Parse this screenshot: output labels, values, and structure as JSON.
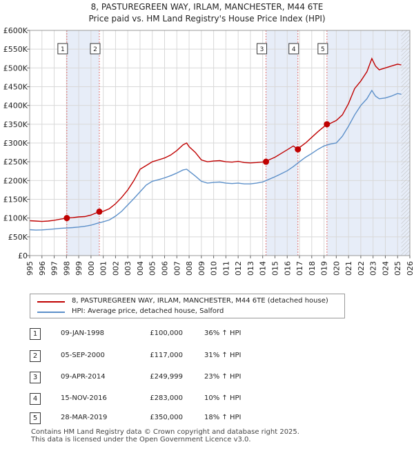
{
  "chart_data": {
    "type": "line",
    "title": "8, PASTUREGREEN WAY, IRLAM, MANCHESTER, M44 6TE",
    "subtitle": "Price paid vs. HM Land Registry's House Price Index (HPI)",
    "xlim": [
      1995,
      2026
    ],
    "ylim": [
      0,
      600000
    ],
    "x_ticks": [
      "1995",
      "1996",
      "1997",
      "1998",
      "1999",
      "2000",
      "2001",
      "2002",
      "2003",
      "2004",
      "2005",
      "2006",
      "2007",
      "2008",
      "2009",
      "2010",
      "2011",
      "2012",
      "2013",
      "2014",
      "2015",
      "2016",
      "2017",
      "2018",
      "2019",
      "2020",
      "2021",
      "2022",
      "2023",
      "2024",
      "2025",
      "2026"
    ],
    "y_ticks": [
      "£0",
      "£50K",
      "£100K",
      "£150K",
      "£200K",
      "£250K",
      "£300K",
      "£350K",
      "£400K",
      "£450K",
      "£500K",
      "£550K",
      "£600K"
    ],
    "y_tick_values": [
      0,
      50000,
      100000,
      150000,
      200000,
      250000,
      300000,
      350000,
      400000,
      450000,
      500000,
      550000,
      600000
    ],
    "grid": true,
    "data_end": 2025.3,
    "series": [
      {
        "name": "8, PASTUREGREEN WAY, IRLAM, MANCHESTER, M44 6TE (detached house)",
        "color": "#c00000",
        "points": [
          [
            1995.0,
            93000
          ],
          [
            1995.5,
            92000
          ],
          [
            1996.0,
            91000
          ],
          [
            1996.5,
            92000
          ],
          [
            1997.0,
            94000
          ],
          [
            1997.5,
            97000
          ],
          [
            1998.03,
            100000
          ],
          [
            1998.5,
            101000
          ],
          [
            1999.0,
            103000
          ],
          [
            1999.5,
            104000
          ],
          [
            2000.0,
            108000
          ],
          [
            2000.68,
            117000
          ],
          [
            2001.0,
            118000
          ],
          [
            2001.5,
            125000
          ],
          [
            2002.0,
            138000
          ],
          [
            2002.5,
            155000
          ],
          [
            2003.0,
            175000
          ],
          [
            2003.5,
            200000
          ],
          [
            2004.0,
            230000
          ],
          [
            2004.5,
            240000
          ],
          [
            2005.0,
            250000
          ],
          [
            2005.5,
            255000
          ],
          [
            2006.0,
            260000
          ],
          [
            2006.5,
            268000
          ],
          [
            2007.0,
            280000
          ],
          [
            2007.5,
            295000
          ],
          [
            2007.8,
            300000
          ],
          [
            2008.0,
            290000
          ],
          [
            2008.5,
            275000
          ],
          [
            2009.0,
            255000
          ],
          [
            2009.5,
            250000
          ],
          [
            2010.0,
            252000
          ],
          [
            2010.5,
            253000
          ],
          [
            2011.0,
            250000
          ],
          [
            2011.5,
            249000
          ],
          [
            2012.0,
            251000
          ],
          [
            2012.5,
            248000
          ],
          [
            2013.0,
            247000
          ],
          [
            2013.5,
            248000
          ],
          [
            2014.27,
            249999
          ],
          [
            2014.5,
            255000
          ],
          [
            2015.0,
            262000
          ],
          [
            2015.5,
            272000
          ],
          [
            2016.0,
            282000
          ],
          [
            2016.5,
            292000
          ],
          [
            2016.87,
            283000
          ],
          [
            2017.0,
            288000
          ],
          [
            2017.5,
            300000
          ],
          [
            2018.0,
            315000
          ],
          [
            2018.5,
            330000
          ],
          [
            2019.24,
            350000
          ],
          [
            2019.5,
            352000
          ],
          [
            2020.0,
            360000
          ],
          [
            2020.5,
            375000
          ],
          [
            2021.0,
            405000
          ],
          [
            2021.5,
            445000
          ],
          [
            2022.0,
            465000
          ],
          [
            2022.5,
            490000
          ],
          [
            2022.9,
            525000
          ],
          [
            2023.2,
            505000
          ],
          [
            2023.5,
            495000
          ],
          [
            2024.0,
            500000
          ],
          [
            2024.5,
            505000
          ],
          [
            2025.0,
            510000
          ],
          [
            2025.3,
            508000
          ]
        ]
      },
      {
        "name": "HPI: Average price, detached house, Salford",
        "color": "#5b8fc9",
        "points": [
          [
            1995.0,
            69000
          ],
          [
            1995.5,
            68000
          ],
          [
            1996.0,
            68500
          ],
          [
            1996.5,
            69500
          ],
          [
            1997.0,
            71000
          ],
          [
            1997.5,
            72500
          ],
          [
            1998.0,
            73500
          ],
          [
            1998.5,
            74500
          ],
          [
            1999.0,
            76000
          ],
          [
            1999.5,
            78000
          ],
          [
            2000.0,
            81000
          ],
          [
            2000.5,
            86000
          ],
          [
            2001.0,
            90000
          ],
          [
            2001.5,
            95000
          ],
          [
            2002.0,
            105000
          ],
          [
            2002.5,
            118000
          ],
          [
            2003.0,
            135000
          ],
          [
            2003.5,
            152000
          ],
          [
            2004.0,
            170000
          ],
          [
            2004.5,
            188000
          ],
          [
            2005.0,
            198000
          ],
          [
            2005.5,
            202000
          ],
          [
            2006.0,
            207000
          ],
          [
            2006.5,
            213000
          ],
          [
            2007.0,
            220000
          ],
          [
            2007.5,
            228000
          ],
          [
            2007.8,
            230000
          ],
          [
            2008.0,
            225000
          ],
          [
            2008.5,
            212000
          ],
          [
            2009.0,
            198000
          ],
          [
            2009.5,
            193000
          ],
          [
            2010.0,
            195000
          ],
          [
            2010.5,
            196000
          ],
          [
            2011.0,
            193000
          ],
          [
            2011.5,
            192000
          ],
          [
            2012.0,
            193000
          ],
          [
            2012.5,
            191000
          ],
          [
            2013.0,
            191000
          ],
          [
            2013.5,
            193000
          ],
          [
            2014.0,
            196000
          ],
          [
            2014.5,
            203000
          ],
          [
            2015.0,
            210000
          ],
          [
            2015.5,
            218000
          ],
          [
            2016.0,
            226000
          ],
          [
            2016.5,
            237000
          ],
          [
            2017.0,
            250000
          ],
          [
            2017.5,
            262000
          ],
          [
            2018.0,
            272000
          ],
          [
            2018.5,
            283000
          ],
          [
            2019.0,
            292000
          ],
          [
            2019.5,
            297000
          ],
          [
            2020.0,
            300000
          ],
          [
            2020.5,
            318000
          ],
          [
            2021.0,
            345000
          ],
          [
            2021.5,
            375000
          ],
          [
            2022.0,
            400000
          ],
          [
            2022.5,
            418000
          ],
          [
            2022.9,
            440000
          ],
          [
            2023.2,
            425000
          ],
          [
            2023.5,
            418000
          ],
          [
            2024.0,
            420000
          ],
          [
            2024.5,
            425000
          ],
          [
            2025.0,
            432000
          ],
          [
            2025.3,
            430000
          ]
        ]
      }
    ],
    "sales": [
      {
        "label": "1",
        "x": 1998.03,
        "price": 100000
      },
      {
        "label": "2",
        "x": 2000.68,
        "price": 117000
      },
      {
        "label": "3",
        "x": 2014.27,
        "price": 249999
      },
      {
        "label": "4",
        "x": 2016.87,
        "price": 283000
      },
      {
        "label": "5",
        "x": 2019.24,
        "price": 350000
      }
    ],
    "shaded_ranges": [
      [
        1998.03,
        2000.68
      ],
      [
        2014.27,
        2016.87
      ],
      [
        2019.24,
        2026
      ]
    ]
  },
  "legend": {
    "series1_label": "8, PASTUREGREEN WAY, IRLAM, MANCHESTER, M44 6TE (detached house)",
    "series2_label": "HPI: Average price, detached house, Salford"
  },
  "table": [
    {
      "num": "1",
      "date": "09-JAN-1998",
      "price": "£100,000",
      "hpi": "36% ↑ HPI"
    },
    {
      "num": "2",
      "date": "05-SEP-2000",
      "price": "£117,000",
      "hpi": "31% ↑ HPI"
    },
    {
      "num": "3",
      "date": "09-APR-2014",
      "price": "£249,999",
      "hpi": "23% ↑ HPI"
    },
    {
      "num": "4",
      "date": "15-NOV-2016",
      "price": "£283,000",
      "hpi": "10% ↑ HPI"
    },
    {
      "num": "5",
      "date": "28-MAR-2019",
      "price": "£350,000",
      "hpi": "18% ↑ HPI"
    }
  ],
  "footer": {
    "line1": "Contains HM Land Registry data © Crown copyright and database right 2025.",
    "line2": "This data is licensed under the Open Government Licence v3.0."
  }
}
